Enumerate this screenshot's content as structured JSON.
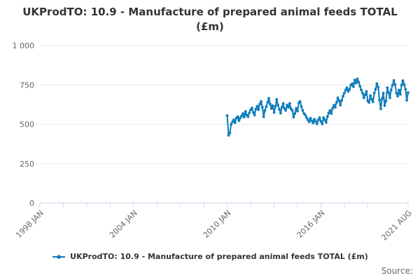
{
  "title": "UKProdTO: 10.9 - Manufacture of prepared animal feeds TOTAL (£m)",
  "source_label": "Source:",
  "legend": {
    "label": "UKProdTO: 10.9 - Manufacture of prepared animal feeds TOTAL (£m)"
  },
  "colors": {
    "series": "#0d7cba",
    "axis": "#ccd6eb",
    "grid": "#e6e6e6",
    "tick_text": "#666666",
    "title_text": "#333333"
  },
  "chart_data": {
    "type": "line",
    "title": "UKProdTO: 10.9 - Manufacture of prepared animal feeds TOTAL (£m)",
    "legend_position": "bottom",
    "grid": "horizontal-only",
    "y_axis": {
      "min": 0,
      "max": 1000,
      "ticks": [
        0,
        250,
        500,
        750,
        1000
      ],
      "tick_labels": [
        "0",
        "250",
        "500",
        "750",
        "1 000"
      ]
    },
    "x_axis": {
      "start": "1998 JAN",
      "end": "2021 AUG",
      "total_months": 284,
      "minor_tick_interval_months": 18,
      "labeled_ticks": [
        {
          "index": 0,
          "label": "1998 JAN"
        },
        {
          "index": 72,
          "label": "2004 JAN"
        },
        {
          "index": 144,
          "label": "2010 JAN"
        },
        {
          "index": 216,
          "label": "2016 JAN"
        },
        {
          "index": 283,
          "label": "2021 AUG"
        }
      ]
    },
    "series": [
      {
        "name": "UKProdTO: 10.9 - Manufacture of prepared animal feeds TOTAL (£m)",
        "color": "#0d7cba",
        "start": "2010 JAN",
        "end": "2021 AUG",
        "start_index": 144,
        "values": [
          555,
          430,
          445,
          500,
          515,
          528,
          510,
          538,
          548,
          522,
          540,
          552,
          568,
          545,
          582,
          558,
          548,
          572,
          592,
          603,
          576,
          558,
          596,
          615,
          592,
          628,
          645,
          608,
          548,
          588,
          612,
          638,
          665,
          628,
          600,
          618,
          575,
          612,
          658,
          622,
          595,
          570,
          608,
          632,
          600,
          588,
          622,
          608,
          632,
          598,
          588,
          545,
          568,
          602,
          583,
          636,
          645,
          612,
          588,
          568,
          558,
          542,
          528,
          515,
          538,
          522,
          508,
          532,
          518,
          502,
          528,
          542,
          518,
          502,
          542,
          528,
          512,
          548,
          572,
          588,
          568,
          602,
          622,
          608,
          638,
          668,
          648,
          622,
          652,
          678,
          698,
          718,
          732,
          708,
          722,
          748,
          758,
          738,
          781,
          762,
          788,
          768,
          742,
          718,
          698,
          668,
          688,
          708,
          648,
          638,
          682,
          658,
          642,
          698,
          722,
          758,
          735,
          652,
          598,
          662,
          698,
          618,
          648,
          732,
          702,
          668,
          718,
          748,
          778,
          752,
          698,
          678,
          718,
          690,
          748,
          777,
          752,
          722,
          652,
          701
        ]
      }
    ]
  }
}
